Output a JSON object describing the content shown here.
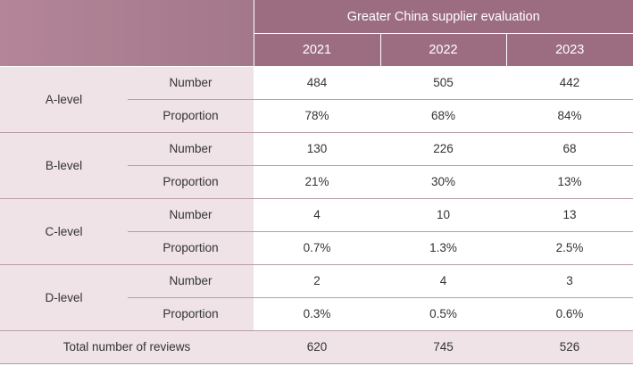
{
  "header": {
    "title": "Greater China supplier evaluation",
    "years": [
      "2021",
      "2022",
      "2023"
    ]
  },
  "levels": [
    {
      "label": "A-level",
      "rows": [
        {
          "metric": "Number",
          "values": [
            "484",
            "505",
            "442"
          ]
        },
        {
          "metric": "Proportion",
          "values": [
            "78%",
            "68%",
            "84%"
          ]
        }
      ]
    },
    {
      "label": "B-level",
      "rows": [
        {
          "metric": "Number",
          "values": [
            "130",
            "226",
            "68"
          ]
        },
        {
          "metric": "Proportion",
          "values": [
            "21%",
            "30%",
            "13%"
          ]
        }
      ]
    },
    {
      "label": "C-level",
      "rows": [
        {
          "metric": "Number",
          "values": [
            "4",
            "10",
            "13"
          ]
        },
        {
          "metric": "Proportion",
          "values": [
            "0.7%",
            "1.3%",
            "2.5%"
          ]
        }
      ]
    },
    {
      "label": "D-level",
      "rows": [
        {
          "metric": "Number",
          "values": [
            "2",
            "4",
            "3"
          ]
        },
        {
          "metric": "Proportion",
          "values": [
            "0.3%",
            "0.5%",
            "0.6%"
          ]
        }
      ]
    }
  ],
  "total": {
    "label": "Total number of reviews",
    "values": [
      "620",
      "745",
      "526"
    ]
  },
  "colors": {
    "header_bg": "#9c6d80",
    "label_bg": "#efe3e8",
    "rule": "#b89ca8"
  }
}
